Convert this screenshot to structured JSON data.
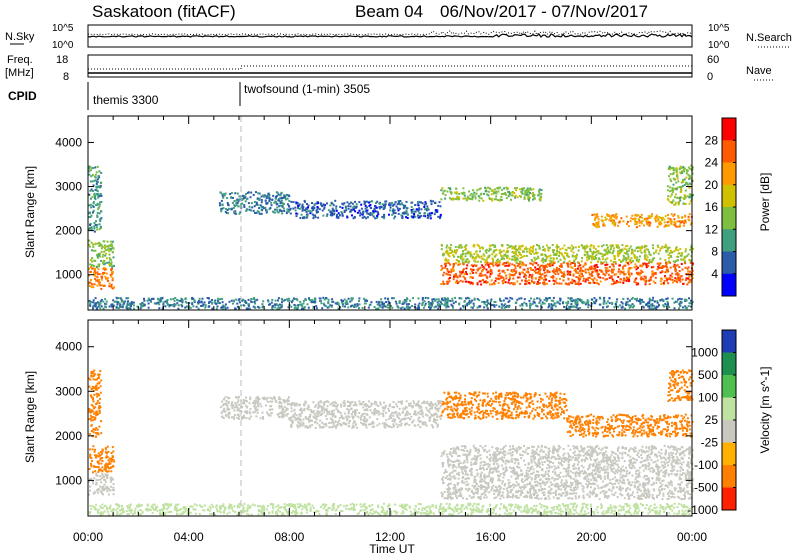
{
  "header": {
    "station": "Saskatoon (fitACF)",
    "beam": "Beam 04",
    "date_range": "06/Nov/2017 - 07/Nov/2017"
  },
  "panels": {
    "nsky": {
      "left_label": "N.Sky",
      "left_ticks": [
        "10^5",
        "10^0"
      ],
      "right_label": "N.Search",
      "right_ticks": [
        "10^5",
        "10^0"
      ]
    },
    "freq": {
      "left_label_1": "Freq.",
      "left_label_2": "[MHz]",
      "left_ticks": [
        "18",
        "8"
      ],
      "right_label": "Nave",
      "right_ticks": [
        "60",
        "0"
      ]
    },
    "cpid": {
      "label": "CPID",
      "mode_1": "themis 3300",
      "mode_2": "twofsound (1-min) 3505"
    }
  },
  "power_colorbar": {
    "label": "Power [dB]",
    "ticks": [
      "28",
      "24",
      "20",
      "16",
      "12",
      "8",
      "4"
    ],
    "colors": [
      "#ff0000",
      "#ff5a00",
      "#ff9900",
      "#cfc000",
      "#7fbf3f",
      "#3f9f7f",
      "#2a5caa",
      "#0000ff"
    ]
  },
  "velocity_colorbar": {
    "label": "Velocity [m s^-1]",
    "ticks": [
      "1000",
      "500",
      "100",
      "25",
      "-25",
      "-100",
      "-500",
      "-1000"
    ],
    "colors": [
      "#1e3cb4",
      "#1f8f4f",
      "#4fbf4f",
      "#bfe2a0",
      "#c8c8c0",
      "#ffb000",
      "#ff8000",
      "#ff2000"
    ]
  },
  "chart_data": [
    {
      "type": "heatmap",
      "name": "power",
      "ylabel": "Slant Range [km]",
      "x_ticks": [
        "00:00",
        "04:00",
        "08:00",
        "12:00",
        "16:00",
        "20:00",
        "00:00"
      ],
      "y_ticks": [
        "1000",
        "2000",
        "3000",
        "4000"
      ],
      "xlim_hours": [
        0,
        24
      ],
      "ylim_km": [
        200,
        4600
      ],
      "mode_change_hour": 6,
      "regions": [
        {
          "t0": 0.0,
          "t1": 1.0,
          "r0": 700,
          "r1": 1200,
          "level": 24
        },
        {
          "t0": 0.0,
          "t1": 1.0,
          "r0": 1200,
          "r1": 1800,
          "level": 14
        },
        {
          "t0": 0.0,
          "t1": 0.5,
          "r0": 2000,
          "r1": 3500,
          "level": 10
        },
        {
          "t0": 5.2,
          "t1": 8.0,
          "r0": 2400,
          "r1": 2900,
          "level": 8
        },
        {
          "t0": 8.0,
          "t1": 14.0,
          "r0": 2300,
          "r1": 2700,
          "level": 6
        },
        {
          "t0": 14.0,
          "t1": 24.0,
          "r0": 800,
          "r1": 1300,
          "level": 26
        },
        {
          "t0": 14.0,
          "t1": 24.0,
          "r0": 1300,
          "r1": 1700,
          "level": 16
        },
        {
          "t0": 14.0,
          "t1": 18.0,
          "r0": 2700,
          "r1": 3000,
          "level": 14
        },
        {
          "t0": 20.0,
          "t1": 24.0,
          "r0": 2100,
          "r1": 2400,
          "level": 22
        },
        {
          "t0": 23.0,
          "t1": 24.0,
          "r0": 2600,
          "r1": 3500,
          "level": 14
        },
        {
          "t0": 0.0,
          "t1": 24.0,
          "r0": 250,
          "r1": 500,
          "level": 8
        }
      ]
    },
    {
      "type": "heatmap",
      "name": "velocity",
      "ylabel": "Slant Range [km]",
      "xlabel": "Time UT",
      "x_ticks": [
        "00:00",
        "04:00",
        "08:00",
        "12:00",
        "16:00",
        "20:00",
        "00:00"
      ],
      "y_ticks": [
        "1000",
        "2000",
        "3000",
        "4000"
      ],
      "xlim_hours": [
        0,
        24
      ],
      "ylim_km": [
        200,
        4600
      ],
      "regions": [
        {
          "t0": 0.0,
          "t1": 1.0,
          "r0": 700,
          "r1": 1200,
          "level": 0
        },
        {
          "t0": 0.0,
          "t1": 1.0,
          "r0": 1200,
          "r1": 1800,
          "level": -300
        },
        {
          "t0": 0.0,
          "t1": 0.5,
          "r0": 2000,
          "r1": 3500,
          "level": -300
        },
        {
          "t0": 5.2,
          "t1": 8.0,
          "r0": 2400,
          "r1": 2900,
          "level": 0
        },
        {
          "t0": 8.0,
          "t1": 14.0,
          "r0": 2200,
          "r1": 2800,
          "level": 0
        },
        {
          "t0": 14.0,
          "t1": 24.0,
          "r0": 600,
          "r1": 1800,
          "level": 0
        },
        {
          "t0": 14.0,
          "t1": 19.0,
          "r0": 2400,
          "r1": 3000,
          "level": -300
        },
        {
          "t0": 19.0,
          "t1": 24.0,
          "r0": 2000,
          "r1": 2500,
          "level": -300
        },
        {
          "t0": 23.0,
          "t1": 24.0,
          "r0": 2800,
          "r1": 3500,
          "level": -300
        },
        {
          "t0": 0.0,
          "t1": 24.0,
          "r0": 250,
          "r1": 500,
          "level": 60
        }
      ]
    }
  ]
}
